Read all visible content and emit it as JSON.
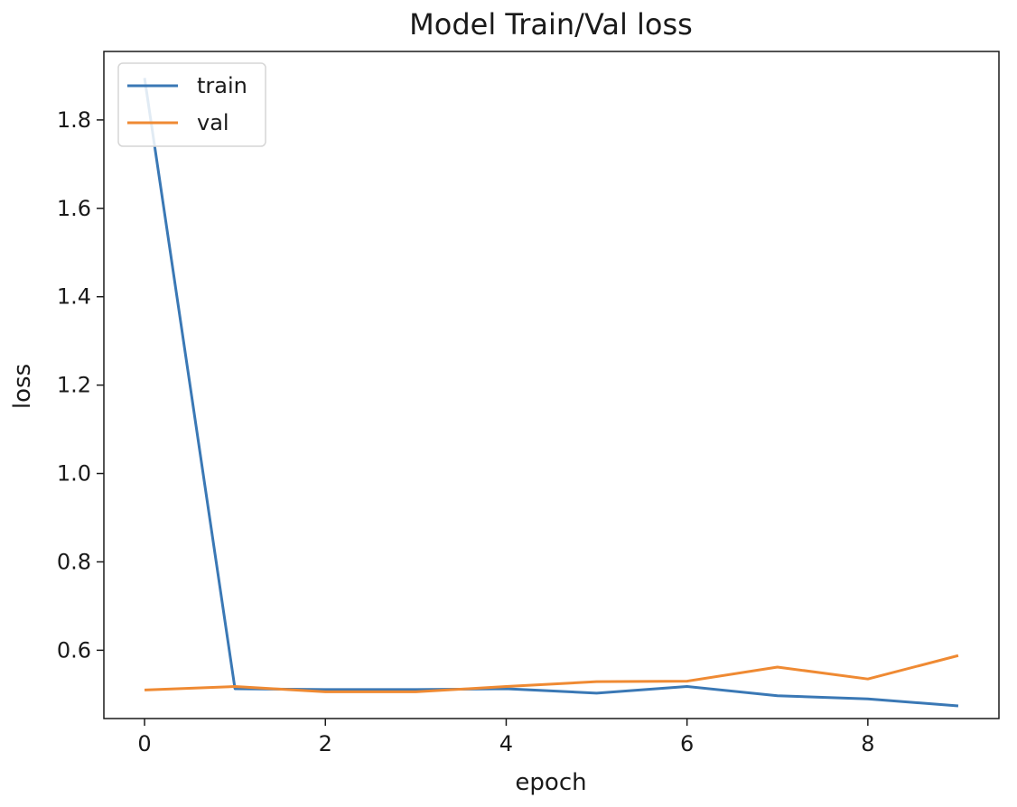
{
  "chart_data": {
    "type": "line",
    "title": "Model Train/Val loss",
    "xlabel": "epoch",
    "ylabel": "loss",
    "x": [
      0,
      1,
      2,
      3,
      4,
      5,
      6,
      7,
      8,
      9
    ],
    "xlim": [
      -0.45,
      9.45
    ],
    "ylim": [
      0.4455,
      1.955
    ],
    "xticks": [
      0,
      2,
      4,
      6,
      8
    ],
    "yticks": [
      0.6,
      0.8,
      1.0,
      1.2,
      1.4,
      1.6,
      1.8
    ],
    "ytick_labels": [
      "0.6",
      "0.8",
      "1.0",
      "1.2",
      "1.4",
      "1.6",
      "1.8"
    ],
    "grid": false,
    "legend_position": "top-left",
    "series": [
      {
        "name": "train",
        "color": "#3a78b5",
        "values": [
          1.895,
          0.513,
          0.511,
          0.511,
          0.513,
          0.503,
          0.518,
          0.497,
          0.49,
          0.474
        ]
      },
      {
        "name": "val",
        "color": "#ef8a33",
        "values": [
          0.51,
          0.518,
          0.506,
          0.506,
          0.518,
          0.529,
          0.53,
          0.562,
          0.535,
          0.588
        ]
      }
    ]
  }
}
